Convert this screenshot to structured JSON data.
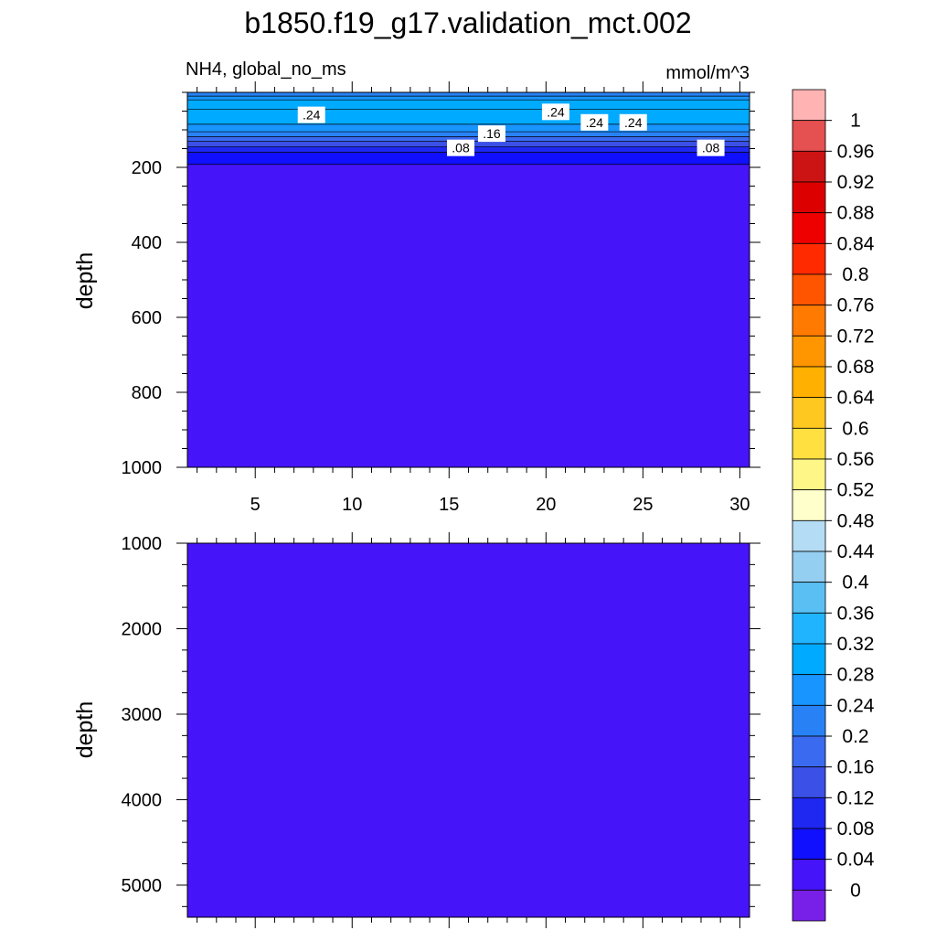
{
  "chart_data": {
    "type": "heatmap",
    "title": "b1850.f19_g17.validation_mct.002",
    "panels": [
      {
        "name": "upper",
        "left_label": "NH4, global_no_ms",
        "right_label": "mmol/m^3",
        "ylabel": "depth",
        "yticks": [
          "200",
          "400",
          "600",
          "800",
          "1000"
        ],
        "ytick_values": [
          200,
          400,
          600,
          800,
          1000
        ],
        "ylim": [
          0,
          1000
        ],
        "xticks": [
          "5",
          "10",
          "15",
          "20",
          "25",
          "30"
        ],
        "xtick_values": [
          5,
          10,
          15,
          20,
          25,
          30
        ],
        "xlim": [
          1.5,
          30.5
        ],
        "bands": [
          {
            "from": 0,
            "to": 10,
            "level": 0.22
          },
          {
            "from": 10,
            "to": 20,
            "level": 0.26
          },
          {
            "from": 20,
            "to": 45,
            "level": 0.3
          },
          {
            "from": 45,
            "to": 85,
            "level": 0.3
          },
          {
            "from": 85,
            "to": 105,
            "level": 0.26
          },
          {
            "from": 105,
            "to": 118,
            "level": 0.22
          },
          {
            "from": 118,
            "to": 130,
            "level": 0.18
          },
          {
            "from": 130,
            "to": 145,
            "level": 0.14
          },
          {
            "from": 145,
            "to": 160,
            "level": 0.1
          },
          {
            "from": 160,
            "to": 192,
            "level": 0.06
          },
          {
            "from": 192,
            "to": 1000,
            "level": 0.02
          }
        ],
        "contour_labels": [
          {
            "text": ".24",
            "x": 7.9,
            "y": 60
          },
          {
            "text": ".24",
            "x": 20.5,
            "y": 52
          },
          {
            "text": ".24",
            "x": 22.5,
            "y": 80
          },
          {
            "text": ".24",
            "x": 24.5,
            "y": 80
          },
          {
            "text": ".16",
            "x": 17.2,
            "y": 110
          },
          {
            "text": ".08",
            "x": 15.6,
            "y": 148
          },
          {
            "text": ".08",
            "x": 28.5,
            "y": 148
          }
        ]
      },
      {
        "name": "lower",
        "ylabel": "depth",
        "yticks": [
          "1000",
          "2000",
          "3000",
          "4000",
          "5000"
        ],
        "ytick_values": [
          1000,
          2000,
          3000,
          4000,
          5000
        ],
        "ylim": [
          1000,
          5375
        ],
        "xtick_values": [
          5,
          10,
          15,
          20,
          25,
          30
        ],
        "xlim": [
          1.5,
          30.5
        ],
        "bands": [
          {
            "from": 1000,
            "to": 5375,
            "level": 0.02
          }
        ]
      }
    ],
    "colorbar": {
      "labels": [
        "1",
        "0.96",
        "0.92",
        "0.88",
        "0.84",
        "0.8",
        "0.76",
        "0.72",
        "0.68",
        "0.64",
        "0.6",
        "0.56",
        "0.52",
        "0.48",
        "0.44",
        "0.4",
        "0.36",
        "0.32",
        "0.28",
        "0.24",
        "0.2",
        "0.16",
        "0.12",
        "0.08",
        "0.04",
        "0"
      ],
      "colors": [
        "#ffb3b3",
        "#e55050",
        "#cc1414",
        "#dd0000",
        "#ee0000",
        "#ff2a00",
        "#ff5500",
        "#ff7a00",
        "#ff9600",
        "#ffb000",
        "#ffc820",
        "#ffe040",
        "#fff688",
        "#ffffcc",
        "#b4dcf4",
        "#94cef0",
        "#5ac0f4",
        "#20b4ff",
        "#00aaff",
        "#1895ff",
        "#2882f5",
        "#3a6af0",
        "#3a50e6",
        "#1e28f0",
        "#1010ff",
        "#4614f8",
        "#7820e8"
      ]
    }
  }
}
